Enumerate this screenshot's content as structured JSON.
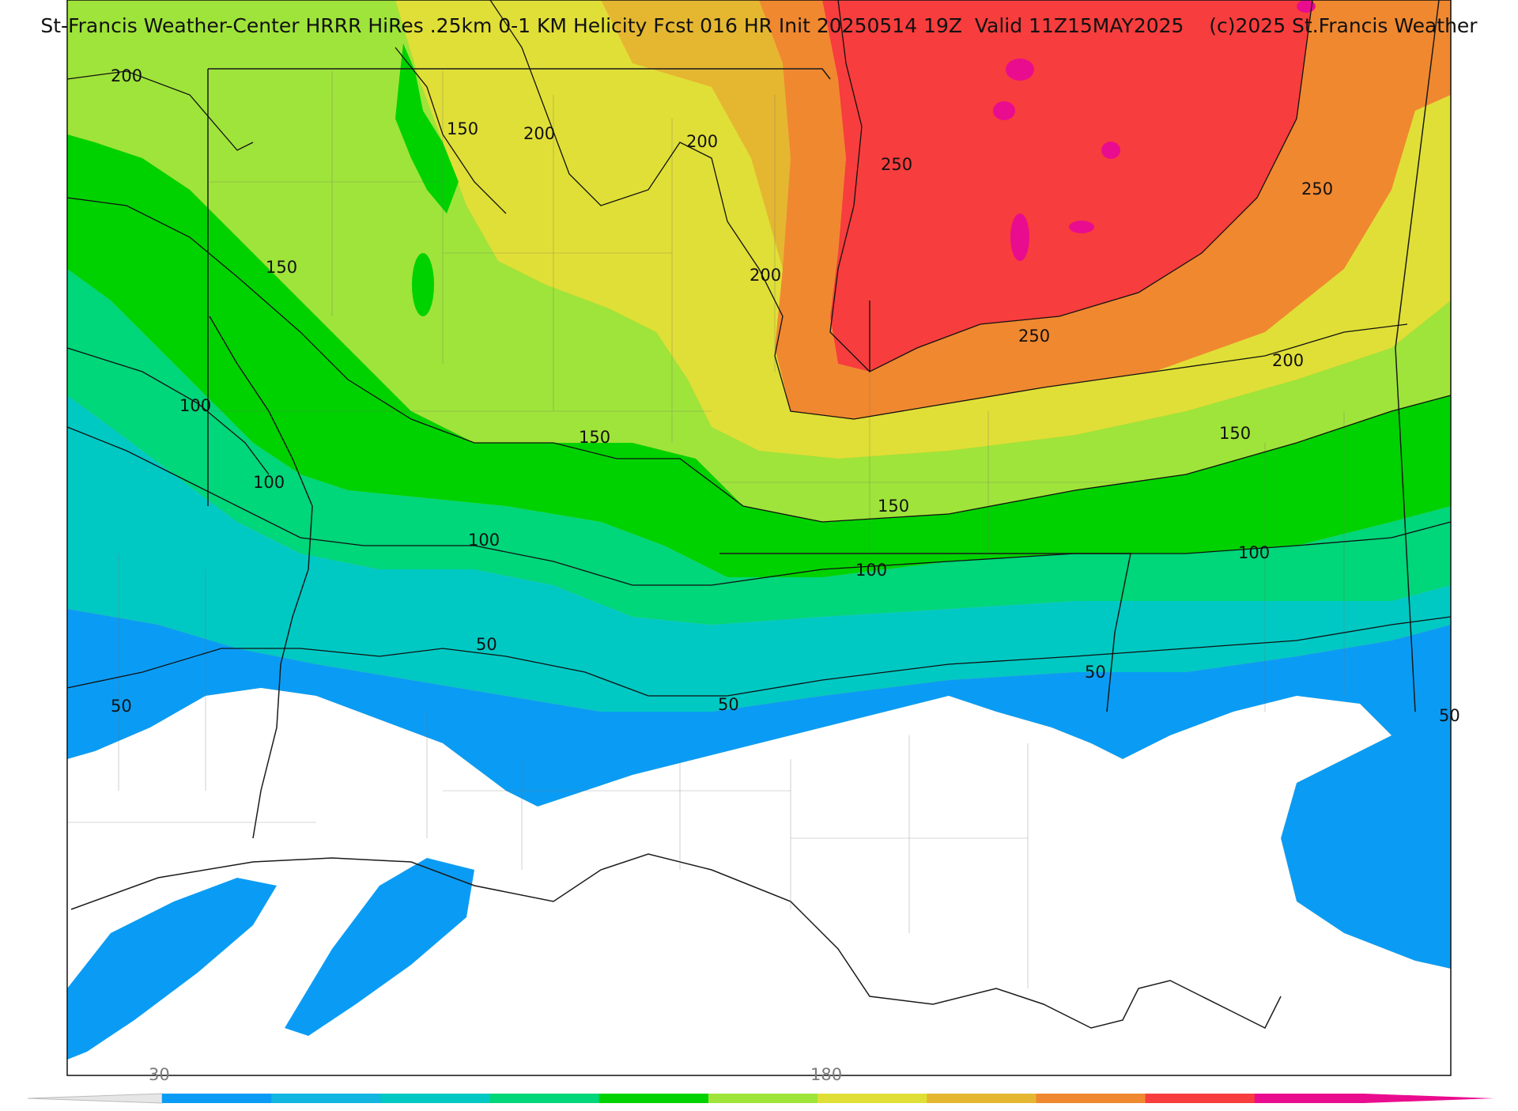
{
  "title": "St-Francis Weather-Center HRRR HiRes .25km 0-1 KM Helicity Fcst 016 HR Init 20250514 19Z  Valid 11Z15MAY2025    (c)2025 St.Francis Weather",
  "contour_labels": {
    "c200_nw": "200",
    "c150_n": "150",
    "c200_n1": "200",
    "c200_n2": "200",
    "c250_ne": "250",
    "c250_e": "250",
    "c150_w": "150",
    "c200_c": "200",
    "c250_c": "250",
    "c200_e": "200",
    "c100_w": "100",
    "c150_c": "150",
    "c150_e": "150",
    "c100_w2": "100",
    "c150_se": "150",
    "c100_c": "100",
    "c100_c2": "100",
    "c100_e": "100",
    "c50_c": "50",
    "c50_e": "50",
    "c50_w": "50",
    "c50_c2": "50",
    "c50_far_e": "50"
  },
  "colorbar": {
    "label_min": "30",
    "label_mid": "180",
    "colors": [
      "#0a9cf5",
      "#12b5e0",
      "#00c9c4",
      "#00d67a",
      "#00d200",
      "#9fe43a",
      "#e0df37",
      "#e5b731",
      "#f08830",
      "#f73d3d",
      "#ea0c8f"
    ]
  },
  "fill_colors": {
    "white": "#ffffff",
    "c30": "#0a9cf5",
    "c50": "#00c9c4",
    "c100": "#00d67a",
    "c130": "#00d200",
    "c150": "#9fe43a",
    "c180": "#e0df37",
    "c200": "#e5b731",
    "c230": "#f08830",
    "c250": "#f73d3d",
    "c300": "#ea0c8f"
  }
}
